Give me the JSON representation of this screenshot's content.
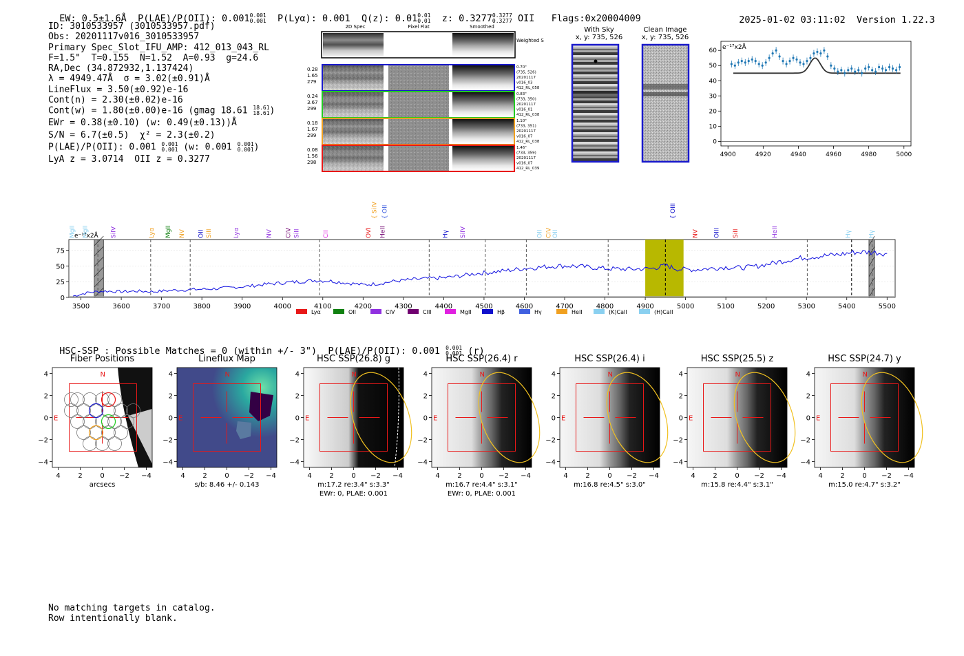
{
  "header": {
    "ew": "EW: 0.5±1.6Å",
    "plae_label": "P(LAE)/P(OII): 0.001",
    "plae_hi": "0.001",
    "plae_lo": "0.001",
    "plya": "P(Lyα): 0.001",
    "qz_label": "Q(z): 0.01",
    "qz_hi": "0.01",
    "qz_lo": "0.01",
    "z_label": "z: 0.3277",
    "z_hi": "0.3277",
    "z_lo": "0.3277",
    "z_line": "OII",
    "flags": "Flags:0x20004009",
    "timestamp": "2025-01-02 03:11:02",
    "version": "Version 1.22.3"
  },
  "info": {
    "id": "ID: 3010533957 (3010533957.pdf)",
    "obs": "Obs: 20201117v016_3010533957",
    "primary": "Primary Spec_Slot_IFU_AMP: 412_013_043_RL",
    "params": "F=1.5\"  T=0.155  N=1.52  A=0.93  g=24.6",
    "radec": "RA,Dec (34.872932,1.137424)",
    "lambda": "λ = 4949.47Å  σ = 3.02(±0.91)Å",
    "lineflux": "LineFlux = 3.50(±0.92)e-16",
    "contn": "Cont(n) = 2.30(±0.02)e-16",
    "contw": "Cont(w) = 1.80(±0.00)e-16 (gmag 18.61",
    "contw_hi": "18.61",
    "contw_lo": "18.61",
    "ewr": "EWr = 0.38(±0.10) (w: 0.49(±0.13))Å",
    "sn": "S/N = 6.7(±0.5)  χ² = 2.3(±0.2)",
    "plae": "P(LAE)/P(OII): 0.001",
    "plae_hi": "0.001",
    "plae_lo": "0.001",
    "plae_w": "(w: 0.001",
    "plae_w_hi": "0.001",
    "plae_w_lo": "0.001",
    "plae_close": ")",
    "lya": "LyA z = 3.0714  OII z = 0.3277"
  },
  "cutouts": {
    "col_headers": [
      "2D Spec",
      "Pixel Flat",
      "Smoothed"
    ],
    "weighted_sum": "Weighted Sum",
    "rows": [
      {
        "left": [
          "0.28",
          "1.65",
          "279"
        ],
        "right": [
          "0.70\"",
          "(735, 526)",
          "20201117",
          "v016_03",
          "412_RL_058"
        ],
        "color": "#1a1acc"
      },
      {
        "left": [
          "0.24",
          "3.67",
          "299"
        ],
        "right": [
          "0.83\"",
          "(733, 350)",
          "20201117",
          "v016_01",
          "412_RL_038"
        ],
        "color": "#22cc22"
      },
      {
        "left": [
          "0.18",
          "1.67",
          "299"
        ],
        "right": [
          "1.10\"",
          "(733, 351)",
          "20201117",
          "v016_07",
          "412_RL_038"
        ],
        "color": "#f0a020"
      },
      {
        "left": [
          "0.08",
          "1.56",
          "298"
        ],
        "right": [
          "1.46\"",
          "(733, 359)",
          "20201117",
          "v016_07",
          "412_RL_039"
        ],
        "color": "#e81818"
      }
    ]
  },
  "sky": {
    "with_sky_title": "With Sky",
    "with_sky_coords": "x, y: 735, 526",
    "clean_title": "Clean Image",
    "clean_coords": "x, y: 735, 526"
  },
  "zoom_plot": {
    "unit": "e⁻¹⁷x2Å",
    "yticks": [
      "60",
      "50",
      "40",
      "30",
      "20",
      "10",
      "0"
    ],
    "xticks": [
      "4900",
      "4920",
      "4940",
      "4960",
      "4980",
      "5000"
    ]
  },
  "chart_data": {
    "type": "line",
    "title": "",
    "ylabel": "e⁻¹⁷x2Å",
    "x_range": [
      3470,
      5520
    ],
    "y_range": [
      0,
      92
    ],
    "xticks": [
      "3500",
      "3600",
      "3700",
      "3800",
      "3900",
      "4000",
      "4100",
      "4200",
      "4300",
      "4400",
      "4500",
      "4600",
      "4700",
      "4800",
      "4900",
      "5000",
      "5100",
      "5200",
      "5300",
      "5400",
      "5500"
    ],
    "yticks": [
      "75",
      "50",
      "25",
      "0"
    ],
    "spectrum": {
      "x": [
        3480,
        3520,
        3560,
        3600,
        3640,
        3680,
        3720,
        3760,
        3800,
        3840,
        3880,
        3920,
        3960,
        4000,
        4040,
        4080,
        4120,
        4160,
        4200,
        4240,
        4280,
        4320,
        4360,
        4400,
        4440,
        4480,
        4520,
        4560,
        4600,
        4640,
        4680,
        4720,
        4760,
        4800,
        4840,
        4880,
        4920,
        4950,
        4980,
        5020,
        5060,
        5100,
        5140,
        5180,
        5220,
        5260,
        5300,
        5340,
        5380,
        5420,
        5460,
        5500
      ],
      "y": [
        2,
        8,
        10,
        9,
        10,
        9,
        11,
        12,
        13,
        14,
        16,
        18,
        21,
        23,
        25,
        27,
        26,
        23,
        20,
        22,
        26,
        28,
        30,
        31,
        34,
        38,
        40,
        43,
        46,
        48,
        50,
        50,
        48,
        46,
        45,
        45,
        46,
        51,
        45,
        44,
        46,
        48,
        47,
        50,
        55,
        60,
        64,
        66,
        68,
        72,
        72,
        70
      ]
    },
    "shaded_band": [
      4900,
      4995
    ],
    "dashed_lines": [
      3542,
      3673,
      3771,
      4092,
      4364,
      4503,
      4605,
      4808,
      4950,
      5302,
      5412,
      5463
    ],
    "hatched_bands": [
      [
        3533,
        3556
      ],
      [
        5455,
        5469
      ]
    ],
    "line_labels": [
      {
        "name": "MgII",
        "w": 3478,
        "color": "#8ad0f0",
        "row": 0
      },
      {
        "name": "MgII",
        "w": 3510,
        "color": "#8ad0f0",
        "row": 0
      },
      {
        "name": "SiIV",
        "w": 3580,
        "color": "#9030e0",
        "row": 0
      },
      {
        "name": "Lyα",
        "w": 3675,
        "color": "#f0a020",
        "row": 0
      },
      {
        "name": "MgII",
        "w": 3716,
        "color": "#108010",
        "row": 0
      },
      {
        "name": "NV",
        "w": 3750,
        "color": "#f0a020",
        "row": 0
      },
      {
        "name": "OII",
        "w": 3797,
        "color": "#1010cc",
        "row": 0
      },
      {
        "name": "SiII",
        "w": 3817,
        "color": "#f0a020",
        "row": 0
      },
      {
        "name": "Lyα",
        "w": 3885,
        "color": "#9030e0",
        "row": 0
      },
      {
        "name": "NV",
        "w": 3966,
        "color": "#9030e0",
        "row": 0
      },
      {
        "name": "CIV",
        "w": 4014,
        "color": "#700070",
        "row": 0
      },
      {
        "name": "SiII",
        "w": 4035,
        "color": "#9030e0",
        "row": 0
      },
      {
        "name": "CII",
        "w": 4107,
        "color": "#e020e0",
        "row": 0
      },
      {
        "name": "OVI",
        "w": 4213,
        "color": "#e81818",
        "row": 0
      },
      {
        "name": "HeII",
        "w": 4248,
        "color": "#700070",
        "row": 0
      },
      {
        "name": "SiIV",
        "w": 4228,
        "color": "#f0a020",
        "row": 1
      },
      {
        "name": "OII",
        "w": 4253,
        "color": "#4060e0",
        "row": 1
      },
      {
        "name": "Hγ",
        "w": 4404,
        "color": "#1010cc",
        "row": 0
      },
      {
        "name": "SiIV",
        "w": 4447,
        "color": "#9030e0",
        "row": 0
      },
      {
        "name": "OII",
        "w": 4638,
        "color": "#8ad0f0",
        "row": 0
      },
      {
        "name": "CIV",
        "w": 4660,
        "color": "#f0a020",
        "row": 0
      },
      {
        "name": "OII",
        "w": 4676,
        "color": "#8ad0f0",
        "row": 0
      },
      {
        "name": "OIII",
        "w": 4968,
        "color": "#1010cc",
        "row": 1
      },
      {
        "name": "NV",
        "w": 5024,
        "color": "#e81818",
        "row": 0
      },
      {
        "name": "OIII",
        "w": 5077,
        "color": "#1010cc",
        "row": 0
      },
      {
        "name": "SiII",
        "w": 5124,
        "color": "#e81818",
        "row": 0
      },
      {
        "name": "HeII",
        "w": 5221,
        "color": "#9030e0",
        "row": 0
      },
      {
        "name": "Hγ",
        "w": 5403,
        "color": "#8ad0f0",
        "row": 0
      },
      {
        "name": "Hγ",
        "w": 5461,
        "color": "#8ad0f0",
        "row": 0
      }
    ],
    "legend": [
      {
        "label": "Lyα",
        "color": "#e81818"
      },
      {
        "label": "OII",
        "color": "#108010"
      },
      {
        "label": "CIV",
        "color": "#9030e0"
      },
      {
        "label": "CIII",
        "color": "#700070"
      },
      {
        "label": "MgII",
        "color": "#e020e0"
      },
      {
        "label": "Hβ",
        "color": "#1010cc"
      },
      {
        "label": "Hγ",
        "color": "#4060e0"
      },
      {
        "label": "HeII",
        "color": "#f0a020"
      },
      {
        "label": "(K)CaII",
        "color": "#8ad0f0"
      },
      {
        "label": "(H)CaII",
        "color": "#8ad0f0"
      }
    ]
  },
  "hsc": {
    "title": "HSC-SSP : Possible Matches = 0 (within +/- 3\")  P(LAE)/P(OII): 0.001",
    "title_hi": "0.001",
    "title_lo": "0.001",
    "title_suffix": "(r)",
    "panels": [
      {
        "title": "Fiber Positions",
        "caption1": "arcsecs",
        "caption2": ""
      },
      {
        "title": "Lineflux Map",
        "caption1": "s/b: 8.46 +/- 0.143",
        "caption2": ""
      },
      {
        "title": "HSC SSP(26.8) g",
        "caption1": "m:17.2  re:3.4\"  s:3.3\"",
        "caption2": "EWr: 0, PLAE: 0.001"
      },
      {
        "title": "HSC SSP(26.4) r",
        "caption1": "m:16.7  re:4.4\"  s:3.1\"",
        "caption2": "EWr: 0, PLAE: 0.001"
      },
      {
        "title": "HSC SSP(26.4) i",
        "caption1": "m:16.8  re:4.5\"  s:3.0\"",
        "caption2": ""
      },
      {
        "title": "HSC SSP(25.5) z",
        "caption1": "m:15.8  re:4.4\"  s:3.1\"",
        "caption2": ""
      },
      {
        "title": "HSC SSP(24.7) y",
        "caption1": "m:15.0  re:4.7\"  s:3.2\"",
        "caption2": ""
      }
    ],
    "ticks": [
      "4",
      "2",
      "0",
      "−2",
      "−4"
    ],
    "xticks": [
      "−4",
      "−2",
      "0",
      "2",
      "4"
    ],
    "n_label": "N",
    "e_label": "E"
  },
  "footer": {
    "line1": "No matching targets in catalog.",
    "line2": "Row intentionally blank."
  }
}
